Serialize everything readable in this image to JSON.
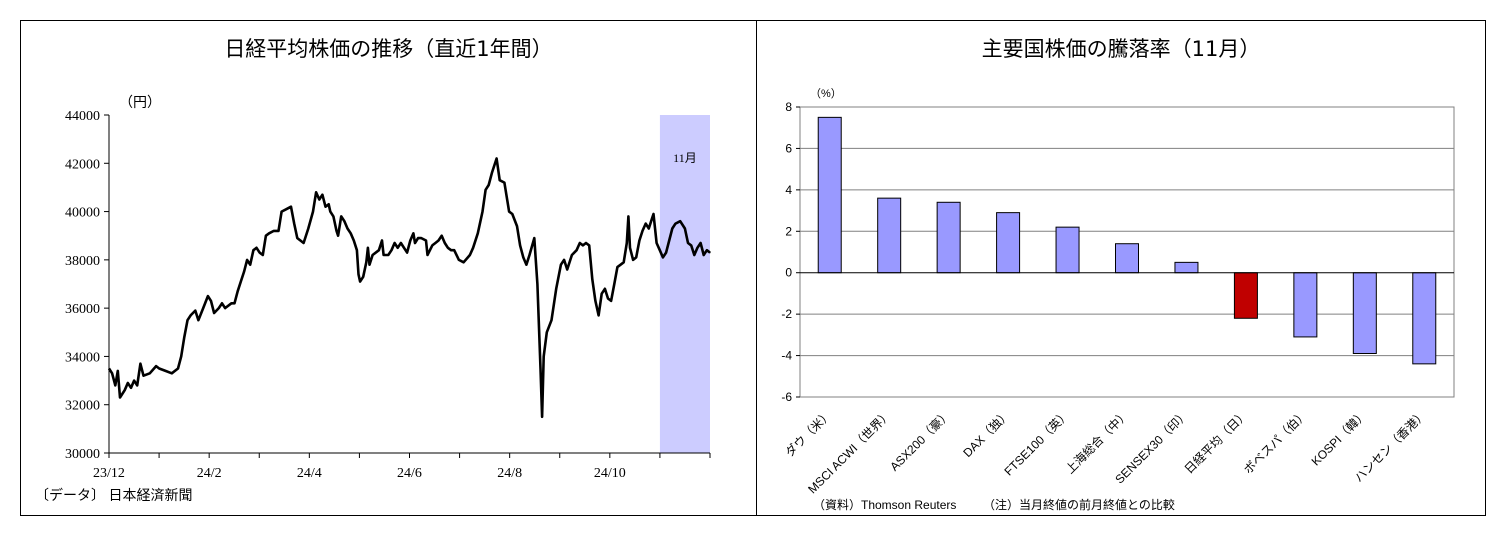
{
  "charts": [
    {
      "title": "日経平均株価の推移（直近1年間）",
      "unit": "（円）",
      "source": "〔データ〕 日本経済新聞",
      "highlight_label": "11月",
      "colors": {
        "line": "#000000",
        "highlight": "#ccccff"
      }
    },
    {
      "title": "主要国株価の騰落率（11月）",
      "unit": "（%）",
      "source": "（資料）Thomson Reuters",
      "note": "（注）当月終値の前月終値との比較",
      "colors": {
        "bar": "#9999ff",
        "highlight_bar": "#c00000"
      }
    }
  ],
  "chart_data": [
    {
      "type": "line",
      "y_ticks": [
        "44000",
        "42000",
        "40000",
        "38000",
        "36000",
        "34000",
        "32000",
        "30000"
      ],
      "x_ticks": [
        "23/12",
        "24/2",
        "24/4",
        "24/6",
        "24/8",
        "24/10"
      ],
      "ylim": [
        30000,
        44000
      ],
      "x_range_months": [
        0,
        12
      ],
      "highlight_range_months": [
        11,
        12
      ],
      "grid": false,
      "series": [
        {
          "points": [
            [
              0.0,
              33500
            ],
            [
              0.1,
              33300
            ],
            [
              0.2,
              32800
            ],
            [
              0.28,
              33400
            ],
            [
              0.35,
              32300
            ],
            [
              0.5,
              32600
            ],
            [
              0.6,
              32900
            ],
            [
              0.7,
              32700
            ],
            [
              0.8,
              33000
            ],
            [
              0.9,
              32800
            ],
            [
              1.0,
              33700
            ],
            [
              1.1,
              33200
            ],
            [
              1.3,
              33300
            ],
            [
              1.5,
              33600
            ],
            [
              1.6,
              33500
            ],
            [
              1.8,
              33400
            ],
            [
              2.0,
              33300
            ],
            [
              2.2,
              33500
            ],
            [
              2.3,
              34000
            ],
            [
              2.4,
              34800
            ],
            [
              2.5,
              35500
            ],
            [
              2.6,
              35700
            ],
            [
              2.75,
              35900
            ],
            [
              2.85,
              35500
            ],
            [
              3.0,
              36000
            ],
            [
              3.15,
              36500
            ],
            [
              3.25,
              36300
            ],
            [
              3.35,
              35800
            ],
            [
              3.5,
              36000
            ],
            [
              3.6,
              36200
            ],
            [
              3.7,
              36000
            ],
            [
              3.9,
              36200
            ],
            [
              4.0,
              36200
            ],
            [
              4.1,
              36700
            ],
            [
              4.2,
              37100
            ],
            [
              4.3,
              37500
            ],
            [
              4.4,
              38000
            ],
            [
              4.5,
              37800
            ],
            [
              4.6,
              38400
            ],
            [
              4.7,
              38500
            ],
            [
              4.8,
              38300
            ],
            [
              4.9,
              38200
            ],
            [
              5.0,
              39000
            ],
            [
              5.1,
              39100
            ],
            [
              5.25,
              39200
            ],
            [
              5.4,
              39200
            ],
            [
              5.5,
              40000
            ],
            [
              5.65,
              40100
            ],
            [
              5.8,
              40200
            ],
            [
              5.9,
              39500
            ],
            [
              6.0,
              38900
            ],
            [
              6.1,
              38800
            ],
            [
              6.2,
              38700
            ],
            [
              6.35,
              39300
            ],
            [
              6.5,
              40000
            ],
            [
              6.6,
              40800
            ],
            [
              6.7,
              40500
            ],
            [
              6.8,
              40700
            ],
            [
              6.9,
              40200
            ],
            [
              7.0,
              40300
            ],
            [
              7.05,
              40000
            ],
            [
              7.15,
              39800
            ],
            [
              7.25,
              39200
            ],
            [
              7.3,
              39000
            ],
            [
              7.4,
              39800
            ],
            [
              7.5,
              39600
            ],
            [
              7.6,
              39300
            ],
            [
              7.7,
              39100
            ],
            [
              7.8,
              38800
            ],
            [
              7.9,
              38400
            ],
            [
              7.95,
              37400
            ],
            [
              8.0,
              37100
            ],
            [
              8.1,
              37300
            ],
            [
              8.2,
              37900
            ],
            [
              8.25,
              38500
            ],
            [
              8.3,
              37800
            ],
            [
              8.4,
              38200
            ],
            [
              8.5,
              38300
            ],
            [
              8.6,
              38400
            ],
            [
              8.7,
              38800
            ],
            [
              8.75,
              38200
            ],
            [
              8.9,
              38200
            ],
            [
              9.0,
              38400
            ],
            [
              9.1,
              38700
            ],
            [
              9.2,
              38500
            ],
            [
              9.3,
              38700
            ],
            [
              9.4,
              38500
            ],
            [
              9.5,
              38300
            ],
            [
              9.6,
              38800
            ],
            [
              9.7,
              39100
            ],
            [
              9.75,
              38700
            ],
            [
              9.85,
              38900
            ],
            [
              9.95,
              38900
            ],
            [
              10.1,
              38800
            ],
            [
              10.15,
              38200
            ],
            [
              10.3,
              38600
            ],
            [
              10.4,
              38700
            ],
            [
              10.5,
              38800
            ],
            [
              10.6,
              39000
            ],
            [
              10.7,
              38700
            ],
            [
              10.8,
              38500
            ],
            [
              10.9,
              38400
            ],
            [
              11.0,
              38400
            ],
            [
              11.15,
              38000
            ],
            [
              11.3,
              37900
            ],
            [
              11.5,
              38200
            ],
            [
              11.6,
              38500
            ],
            [
              11.75,
              39100
            ],
            [
              11.9,
              40000
            ],
            [
              12.0,
              40900
            ],
            [
              12.1,
              41100
            ],
            [
              12.2,
              41600
            ],
            [
              12.35,
              42200
            ],
            [
              12.45,
              41300
            ],
            [
              12.6,
              41200
            ],
            [
              12.75,
              40000
            ],
            [
              12.85,
              39900
            ],
            [
              13.0,
              39400
            ],
            [
              13.1,
              38600
            ],
            [
              13.2,
              38100
            ],
            [
              13.3,
              37800
            ],
            [
              13.4,
              38200
            ],
            [
              13.55,
              38900
            ],
            [
              13.65,
              37000
            ],
            [
              13.75,
              33500
            ],
            [
              13.8,
              31500
            ],
            [
              13.85,
              34000
            ],
            [
              13.95,
              35000
            ],
            [
              14.1,
              35500
            ],
            [
              14.25,
              36800
            ],
            [
              14.4,
              37800
            ],
            [
              14.5,
              38000
            ],
            [
              14.6,
              37600
            ],
            [
              14.75,
              38200
            ],
            [
              14.9,
              38400
            ],
            [
              15.0,
              38700
            ],
            [
              15.1,
              38600
            ],
            [
              15.2,
              38700
            ],
            [
              15.3,
              38600
            ],
            [
              15.4,
              37200
            ],
            [
              15.5,
              36300
            ],
            [
              15.6,
              35700
            ],
            [
              15.7,
              36600
            ],
            [
              15.8,
              36800
            ],
            [
              15.9,
              36400
            ],
            [
              16.0,
              36300
            ],
            [
              16.1,
              37000
            ],
            [
              16.2,
              37700
            ],
            [
              16.3,
              37800
            ],
            [
              16.4,
              37900
            ],
            [
              16.5,
              38700
            ],
            [
              16.55,
              39800
            ],
            [
              16.6,
              38500
            ],
            [
              16.7,
              38000
            ],
            [
              16.8,
              38100
            ],
            [
              16.9,
              38800
            ],
            [
              17.0,
              39200
            ],
            [
              17.1,
              39500
            ],
            [
              17.2,
              39300
            ],
            [
              17.3,
              39700
            ],
            [
              17.35,
              39900
            ],
            [
              17.45,
              38700
            ],
            [
              17.55,
              38400
            ],
            [
              17.65,
              38100
            ],
            [
              17.75,
              38300
            ],
            [
              17.85,
              38800
            ],
            [
              17.95,
              39300
            ],
            [
              18.05,
              39500
            ],
            [
              18.2,
              39600
            ],
            [
              18.35,
              39300
            ],
            [
              18.45,
              38700
            ],
            [
              18.55,
              38600
            ],
            [
              18.65,
              38200
            ],
            [
              18.75,
              38500
            ],
            [
              18.85,
              38700
            ],
            [
              18.95,
              38200
            ],
            [
              19.05,
              38400
            ],
            [
              19.15,
              38300
            ]
          ]
        }
      ]
    },
    {
      "type": "bar",
      "categories": [
        "ダウ（米）",
        "MSCI ACWI（世界）",
        "ASX200（豪）",
        "DAX（独）",
        "FTSE100（英）",
        "上海総合（中）",
        "SENSEX30（印）",
        "日経平均（日）",
        "ボベスパ（伯）",
        "KOSPI（韓）",
        "ハンセン（香港）"
      ],
      "values": [
        7.5,
        3.6,
        3.4,
        2.9,
        2.2,
        1.4,
        0.5,
        -2.2,
        -3.1,
        -3.9,
        -4.4
      ],
      "highlight_category": "日経平均（日）",
      "y_ticks": [
        "8",
        "6",
        "4",
        "2",
        "0",
        "-2",
        "-4",
        "-6"
      ],
      "ylim": [
        -6,
        8
      ],
      "grid": true
    }
  ]
}
